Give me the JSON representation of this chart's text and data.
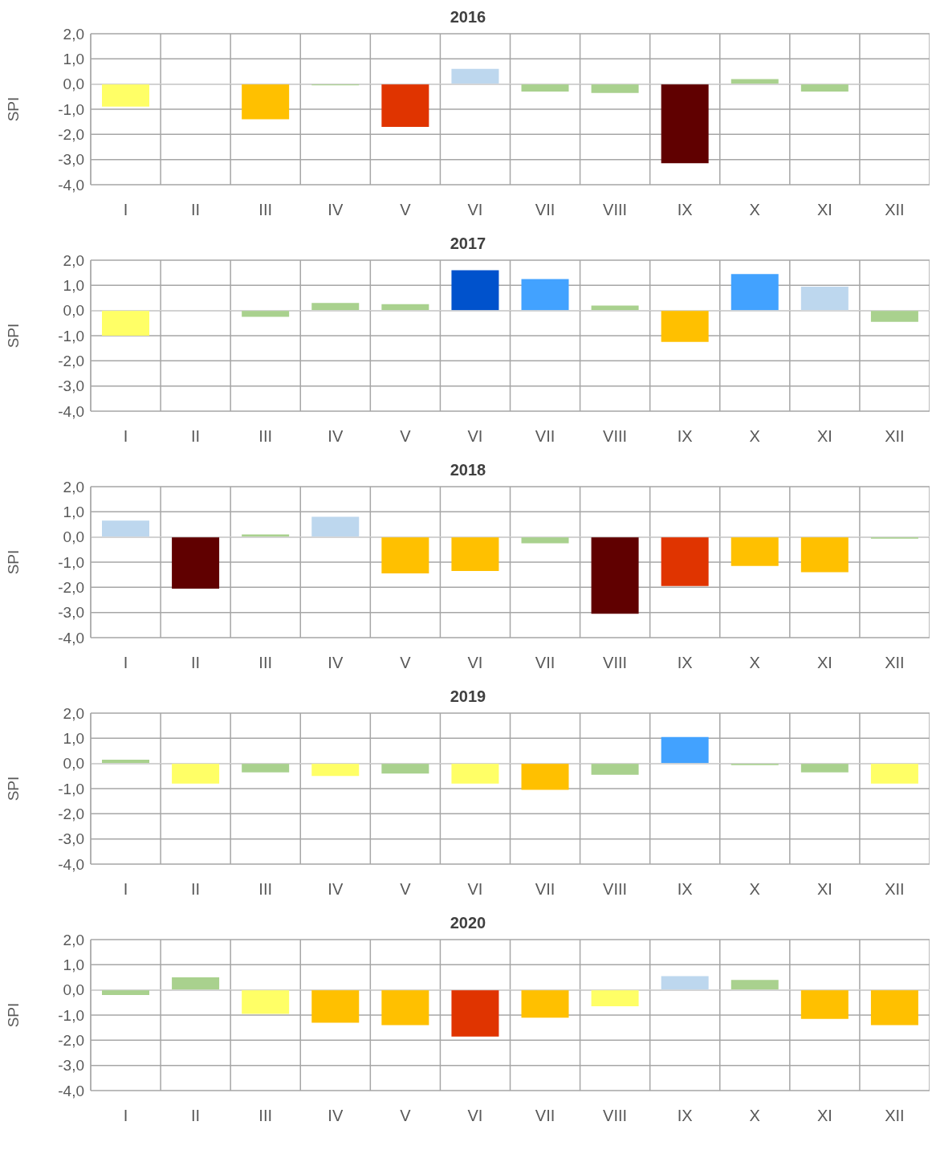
{
  "chart_data": [
    {
      "type": "bar",
      "title": "2016",
      "ylabel": "SPI",
      "categories": [
        "I",
        "II",
        "III",
        "IV",
        "V",
        "VI",
        "VII",
        "VIII",
        "IX",
        "X",
        "XI",
        "XII"
      ],
      "values": [
        -0.9,
        null,
        -1.4,
        -0.05,
        -1.7,
        0.6,
        -0.3,
        -0.35,
        -3.15,
        0.2,
        -0.3,
        null
      ],
      "colors": [
        "#ffff66",
        "#ffffff",
        "#ffc000",
        "#a9d18e",
        "#e03400",
        "#bdd7ee",
        "#a9d18e",
        "#a9d18e",
        "#600000",
        "#a9d18e",
        "#a9d18e",
        "#ffffff"
      ],
      "ylim": [
        -4,
        2
      ],
      "yticks": [
        {
          "value": -4,
          "label": "-4,0"
        },
        {
          "value": -3,
          "label": "-3,0"
        },
        {
          "value": -2,
          "label": "-2,0"
        },
        {
          "value": -1,
          "label": "-1,0"
        },
        {
          "value": 0,
          "label": "0,0"
        },
        {
          "value": 1,
          "label": "1,0"
        },
        {
          "value": 2,
          "label": "2,0"
        }
      ],
      "grid": true,
      "legend": false
    },
    {
      "type": "bar",
      "title": "2017",
      "ylabel": "SPI",
      "categories": [
        "I",
        "II",
        "III",
        "IV",
        "V",
        "VI",
        "VII",
        "VIII",
        "IX",
        "X",
        "XI",
        "XII"
      ],
      "values": [
        -1.0,
        null,
        -0.25,
        0.3,
        0.25,
        1.6,
        1.25,
        0.2,
        -1.25,
        1.45,
        0.95,
        -0.45
      ],
      "colors": [
        "#ffff66",
        "#ffffff",
        "#a9d18e",
        "#a9d18e",
        "#a9d18e",
        "#0052cc",
        "#42a2ff",
        "#a9d18e",
        "#ffc000",
        "#42a2ff",
        "#bdd7ee",
        "#a9d18e"
      ],
      "ylim": [
        -4,
        2
      ],
      "yticks": [
        {
          "value": -4,
          "label": "-4,0"
        },
        {
          "value": -3,
          "label": "-3,0"
        },
        {
          "value": -2,
          "label": "-2,0"
        },
        {
          "value": -1,
          "label": "-1,0"
        },
        {
          "value": 0,
          "label": "0,0"
        },
        {
          "value": 1,
          "label": "1,0"
        },
        {
          "value": 2,
          "label": "2,0"
        }
      ],
      "grid": true,
      "legend": false
    },
    {
      "type": "bar",
      "title": "2018",
      "ylabel": "SPI",
      "categories": [
        "I",
        "II",
        "III",
        "IV",
        "V",
        "VI",
        "VII",
        "VIII",
        "IX",
        "X",
        "XI",
        "XII"
      ],
      "values": [
        0.65,
        -2.05,
        0.1,
        0.8,
        -1.45,
        -1.35,
        -0.25,
        -3.05,
        -1.95,
        -1.15,
        -1.4,
        -0.07
      ],
      "colors": [
        "#bdd7ee",
        "#600000",
        "#a9d18e",
        "#bdd7ee",
        "#ffc000",
        "#ffc000",
        "#a9d18e",
        "#600000",
        "#e03400",
        "#ffc000",
        "#ffc000",
        "#a9d18e"
      ],
      "ylim": [
        -4,
        2
      ],
      "yticks": [
        {
          "value": -4,
          "label": "-4,0"
        },
        {
          "value": -3,
          "label": "-3,0"
        },
        {
          "value": -2,
          "label": "-2,0"
        },
        {
          "value": -1,
          "label": "-1,0"
        },
        {
          "value": 0,
          "label": "0,0"
        },
        {
          "value": 1,
          "label": "1,0"
        },
        {
          "value": 2,
          "label": "2,0"
        }
      ],
      "grid": true,
      "legend": false
    },
    {
      "type": "bar",
      "title": "2019",
      "ylabel": "SPI",
      "categories": [
        "I",
        "II",
        "III",
        "IV",
        "V",
        "VI",
        "VII",
        "VIII",
        "IX",
        "X",
        "XI",
        "XII"
      ],
      "values": [
        0.15,
        -0.8,
        -0.35,
        -0.5,
        -0.4,
        -0.8,
        -1.05,
        -0.45,
        1.05,
        -0.07,
        -0.35,
        -0.8
      ],
      "colors": [
        "#a9d18e",
        "#ffff66",
        "#a9d18e",
        "#ffff66",
        "#a9d18e",
        "#ffff66",
        "#ffc000",
        "#a9d18e",
        "#42a2ff",
        "#a9d18e",
        "#a9d18e",
        "#ffff66"
      ],
      "ylim": [
        -4,
        2
      ],
      "yticks": [
        {
          "value": -4,
          "label": "-4,0"
        },
        {
          "value": -3,
          "label": "-3,0"
        },
        {
          "value": -2,
          "label": "-2,0"
        },
        {
          "value": -1,
          "label": "-1,0"
        },
        {
          "value": 0,
          "label": "0,0"
        },
        {
          "value": 1,
          "label": "1,0"
        },
        {
          "value": 2,
          "label": "2,0"
        }
      ],
      "grid": true,
      "legend": false
    },
    {
      "type": "bar",
      "title": "2020",
      "ylabel": "SPI",
      "categories": [
        "I",
        "II",
        "III",
        "IV",
        "V",
        "VI",
        "VII",
        "VIII",
        "IX",
        "X",
        "XI",
        "XII"
      ],
      "values": [
        -0.2,
        0.5,
        -0.95,
        -1.3,
        -1.4,
        -1.85,
        -1.1,
        -0.65,
        0.55,
        0.4,
        -1.15,
        -1.4
      ],
      "colors": [
        "#a9d18e",
        "#a9d18e",
        "#ffff66",
        "#ffc000",
        "#ffc000",
        "#e03400",
        "#ffc000",
        "#ffff66",
        "#bdd7ee",
        "#a9d18e",
        "#ffc000",
        "#ffc000"
      ],
      "ylim": [
        -4,
        2
      ],
      "yticks": [
        {
          "value": -4,
          "label": "-4,0"
        },
        {
          "value": -3,
          "label": "-3,0"
        },
        {
          "value": -2,
          "label": "-2,0"
        },
        {
          "value": -1,
          "label": "-1,0"
        },
        {
          "value": 0,
          "label": "0,0"
        },
        {
          "value": 1,
          "label": "1,0"
        },
        {
          "value": 2,
          "label": "2,0"
        }
      ],
      "grid": true,
      "legend": false
    }
  ]
}
